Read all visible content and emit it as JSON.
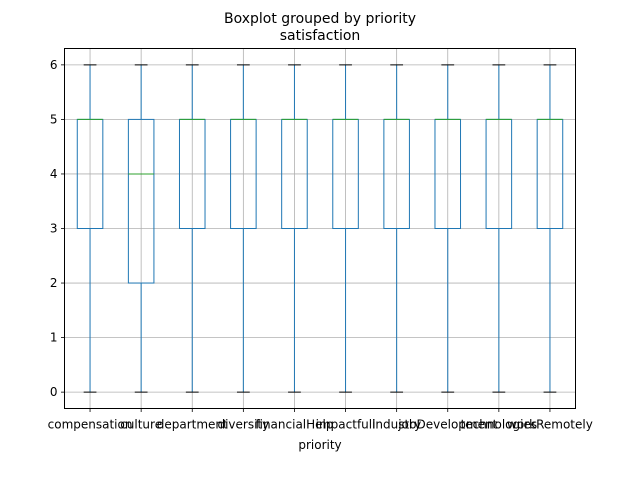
{
  "chart_data": {
    "type": "box",
    "suptitle": "Boxplot grouped by priority",
    "title": "satisfaction",
    "xlabel": "priority",
    "ylabel": "",
    "ylim": [
      -0.3,
      6.3
    ],
    "yticks": [
      0,
      1,
      2,
      3,
      4,
      5,
      6
    ],
    "grid": true,
    "categories": [
      "compensation",
      "culture",
      "department",
      "diversity",
      "financialHelp",
      "impactfull",
      "industry",
      "jobDevelopment",
      "technologies",
      "workRemotely"
    ],
    "boxes": [
      {
        "whisker_low": 0,
        "q1": 3,
        "median": 5,
        "q3": 5,
        "whisker_high": 6
      },
      {
        "whisker_low": 0,
        "q1": 2,
        "median": 4,
        "q3": 5,
        "whisker_high": 6
      },
      {
        "whisker_low": 0,
        "q1": 3,
        "median": 5,
        "q3": 5,
        "whisker_high": 6
      },
      {
        "whisker_low": 0,
        "q1": 3,
        "median": 5,
        "q3": 5,
        "whisker_high": 6
      },
      {
        "whisker_low": 0,
        "q1": 3,
        "median": 5,
        "q3": 5,
        "whisker_high": 6
      },
      {
        "whisker_low": 0,
        "q1": 3,
        "median": 5,
        "q3": 5,
        "whisker_high": 6
      },
      {
        "whisker_low": 0,
        "q1": 3,
        "median": 5,
        "q3": 5,
        "whisker_high": 6
      },
      {
        "whisker_low": 0,
        "q1": 3,
        "median": 5,
        "q3": 5,
        "whisker_high": 6
      },
      {
        "whisker_low": 0,
        "q1": 3,
        "median": 5,
        "q3": 5,
        "whisker_high": 6
      },
      {
        "whisker_low": 0,
        "q1": 3,
        "median": 5,
        "q3": 5,
        "whisker_high": 6
      }
    ],
    "colors": {
      "box": "#1f77b4",
      "median": "#2ca02c",
      "grid": "#b0b0b0",
      "axis": "#000000"
    }
  }
}
